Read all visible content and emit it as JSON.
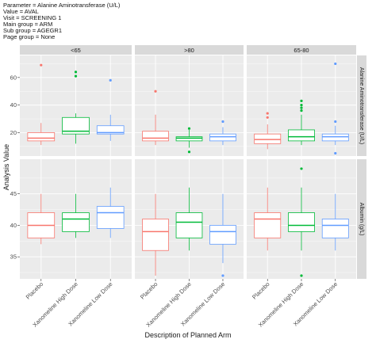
{
  "header": {
    "lines": [
      "Parameter = Alanine Aminotransferase (U/L)",
      "Value = AVAL",
      "Visit = SCREENING 1",
      "Main group = ARM",
      "Sub group = AGEGR1",
      "Page group = None"
    ]
  },
  "chart_data": {
    "type": "boxplot",
    "xlabel": "Description of Planned Arm",
    "ylabel": "Analysis Value",
    "categories": [
      "Placebo",
      "Xanomeline High Dose",
      "Xanomeline Low Dose"
    ],
    "columns": [
      "<65",
      ">80",
      "65-80"
    ],
    "grid": true,
    "colors": {
      "Placebo": "#F8766D",
      "Xanomeline High Dose": "#00BA38",
      "Xanomeline Low Dose": "#619CFF",
      "panel_bg": "#EBEBEB",
      "strip_bg": "#D9D9D9",
      "grid": "#FFFFFF"
    },
    "rows": [
      {
        "label": "Alanine Aminotransferase (U/L)",
        "ylim": [
          3,
          76
        ],
        "yticks": [
          20,
          40,
          60
        ],
        "boxes": [
          [
            {
              "lo": 11,
              "q1": 14,
              "med": 16,
              "q3": 20,
              "hi": 27,
              "out": [
                69
              ]
            },
            {
              "lo": 12,
              "q1": 19,
              "med": 21,
              "q3": 31,
              "hi": 34,
              "out": [
                61,
                64
              ]
            },
            {
              "lo": 14,
              "q1": 19,
              "med": 20,
              "q3": 25,
              "hi": 33,
              "out": [
                58
              ]
            }
          ],
          [
            {
              "lo": 11,
              "q1": 14,
              "med": 16,
              "q3": 21,
              "hi": 33,
              "out": [
                50
              ]
            },
            {
              "lo": 9,
              "q1": 14,
              "med": 16,
              "q3": 17,
              "hi": 22,
              "out": [
                23,
                6
              ]
            },
            {
              "lo": 11,
              "q1": 14,
              "med": 17,
              "q3": 19,
              "hi": 24,
              "out": [
                28
              ]
            }
          ],
          [
            {
              "lo": 8,
              "q1": 12,
              "med": 15,
              "q3": 19,
              "hi": 26,
              "out": [
                31,
                34
              ]
            },
            {
              "lo": 11,
              "q1": 14,
              "med": 17,
              "q3": 22,
              "hi": 33,
              "out": [
                36,
                38,
                40,
                43
              ]
            },
            {
              "lo": 11,
              "q1": 14,
              "med": 17,
              "q3": 19,
              "hi": 25,
              "out": [
                28,
                5,
                70
              ]
            }
          ]
        ]
      },
      {
        "label": "Albumin (g/L)",
        "ylim": [
          31.5,
          50.5
        ],
        "yticks": [
          35,
          40,
          45
        ],
        "boxes": [
          [
            {
              "lo": 37,
              "q1": 38,
              "med": 40,
              "q3": 42,
              "hi": 45,
              "out": []
            },
            {
              "lo": 38,
              "q1": 39,
              "med": 41,
              "q3": 42,
              "hi": 45,
              "out": []
            },
            {
              "lo": 38,
              "q1": 39.5,
              "med": 42,
              "q3": 43,
              "hi": 46,
              "out": []
            }
          ],
          [
            {
              "lo": 32,
              "q1": 36,
              "med": 39,
              "q3": 41,
              "hi": 45,
              "out": []
            },
            {
              "lo": 36,
              "q1": 38,
              "med": 40.5,
              "q3": 42,
              "hi": 46,
              "out": []
            },
            {
              "lo": 34,
              "q1": 37,
              "med": 39,
              "q3": 40,
              "hi": 45,
              "out": [
                32
              ]
            }
          ],
          [
            {
              "lo": 36,
              "q1": 38,
              "med": 41,
              "q3": 42,
              "hi": 46,
              "out": []
            },
            {
              "lo": 36,
              "q1": 39,
              "med": 40,
              "q3": 42,
              "hi": 46,
              "out": [
                49,
                32
              ]
            },
            {
              "lo": 36,
              "q1": 38,
              "med": 40,
              "q3": 41,
              "hi": 45,
              "out": []
            }
          ]
        ]
      }
    ]
  }
}
